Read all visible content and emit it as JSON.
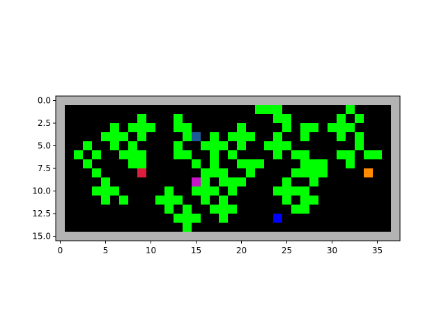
{
  "chart_data": {
    "type": "heatmap",
    "title": "",
    "xlabel": "",
    "ylabel": "",
    "grid_size": {
      "cols": 38,
      "rows": 16
    },
    "xlim": [
      -0.5,
      37.5
    ],
    "ylim": [
      15.5,
      -0.5
    ],
    "x_ticks": [
      0,
      5,
      10,
      15,
      20,
      25,
      30,
      35
    ],
    "x_tick_labels": [
      "0",
      "5",
      "10",
      "15",
      "20",
      "25",
      "30",
      "35"
    ],
    "y_ticks": [
      0,
      2.5,
      5,
      7.5,
      10,
      12.5,
      15
    ],
    "y_tick_labels": [
      "0.0",
      "2.5",
      "5.0",
      "7.5",
      "10.0",
      "12.5",
      "15.0"
    ],
    "colors": {
      "wall": "#b3b3b3",
      "floor": "#000000",
      "plant": "#00ff00"
    },
    "plant_cells": [
      [
        22,
        1
      ],
      [
        23,
        1
      ],
      [
        24,
        1
      ],
      [
        32,
        1
      ],
      [
        9,
        2
      ],
      [
        13,
        2
      ],
      [
        24,
        2
      ],
      [
        25,
        2
      ],
      [
        31,
        2
      ],
      [
        33,
        2
      ],
      [
        6,
        3
      ],
      [
        8,
        3
      ],
      [
        9,
        3
      ],
      [
        10,
        3
      ],
      [
        13,
        3
      ],
      [
        14,
        3
      ],
      [
        20,
        3
      ],
      [
        25,
        3
      ],
      [
        27,
        3
      ],
      [
        28,
        3
      ],
      [
        30,
        3
      ],
      [
        31,
        3
      ],
      [
        32,
        3
      ],
      [
        5,
        4
      ],
      [
        6,
        4
      ],
      [
        7,
        4
      ],
      [
        9,
        4
      ],
      [
        14,
        4
      ],
      [
        17,
        4
      ],
      [
        19,
        4
      ],
      [
        20,
        4
      ],
      [
        21,
        4
      ],
      [
        24,
        4
      ],
      [
        27,
        4
      ],
      [
        31,
        4
      ],
      [
        33,
        4
      ],
      [
        3,
        5
      ],
      [
        6,
        5
      ],
      [
        8,
        5
      ],
      [
        13,
        5
      ],
      [
        16,
        5
      ],
      [
        17,
        5
      ],
      [
        18,
        5
      ],
      [
        20,
        5
      ],
      [
        23,
        5
      ],
      [
        24,
        5
      ],
      [
        25,
        5
      ],
      [
        33,
        5
      ],
      [
        2,
        6
      ],
      [
        4,
        6
      ],
      [
        7,
        6
      ],
      [
        8,
        6
      ],
      [
        9,
        6
      ],
      [
        13,
        6
      ],
      [
        14,
        6
      ],
      [
        17,
        6
      ],
      [
        19,
        6
      ],
      [
        24,
        6
      ],
      [
        26,
        6
      ],
      [
        27,
        6
      ],
      [
        31,
        6
      ],
      [
        32,
        6
      ],
      [
        34,
        6
      ],
      [
        35,
        6
      ],
      [
        3,
        7
      ],
      [
        8,
        7
      ],
      [
        9,
        7
      ],
      [
        15,
        7
      ],
      [
        17,
        7
      ],
      [
        20,
        7
      ],
      [
        21,
        7
      ],
      [
        22,
        7
      ],
      [
        27,
        7
      ],
      [
        28,
        7
      ],
      [
        29,
        7
      ],
      [
        32,
        7
      ],
      [
        4,
        8
      ],
      [
        16,
        8
      ],
      [
        17,
        8
      ],
      [
        18,
        8
      ],
      [
        21,
        8
      ],
      [
        26,
        8
      ],
      [
        27,
        8
      ],
      [
        28,
        8
      ],
      [
        29,
        8
      ],
      [
        5,
        9
      ],
      [
        16,
        9
      ],
      [
        18,
        9
      ],
      [
        19,
        9
      ],
      [
        20,
        9
      ],
      [
        25,
        9
      ],
      [
        28,
        9
      ],
      [
        4,
        10
      ],
      [
        5,
        10
      ],
      [
        6,
        10
      ],
      [
        12,
        10
      ],
      [
        15,
        10
      ],
      [
        16,
        10
      ],
      [
        17,
        10
      ],
      [
        19,
        10
      ],
      [
        24,
        10
      ],
      [
        25,
        10
      ],
      [
        26,
        10
      ],
      [
        27,
        10
      ],
      [
        5,
        11
      ],
      [
        7,
        11
      ],
      [
        11,
        11
      ],
      [
        12,
        11
      ],
      [
        13,
        11
      ],
      [
        16,
        11
      ],
      [
        18,
        11
      ],
      [
        25,
        11
      ],
      [
        27,
        11
      ],
      [
        28,
        11
      ],
      [
        12,
        12
      ],
      [
        14,
        12
      ],
      [
        17,
        12
      ],
      [
        18,
        12
      ],
      [
        19,
        12
      ],
      [
        26,
        12
      ],
      [
        27,
        12
      ],
      [
        13,
        13
      ],
      [
        14,
        13
      ],
      [
        15,
        13
      ],
      [
        18,
        13
      ],
      [
        14,
        14
      ]
    ],
    "entities": [
      {
        "color": "#1a5a96",
        "x": 15,
        "y": 4
      },
      {
        "color": "#dc1e3c",
        "x": 9,
        "y": 8
      },
      {
        "color": "#ff8c00",
        "x": 34,
        "y": 8
      },
      {
        "color": "#c814c8",
        "x": 15,
        "y": 9
      },
      {
        "color": "#0000ff",
        "x": 24,
        "y": 13
      }
    ]
  }
}
